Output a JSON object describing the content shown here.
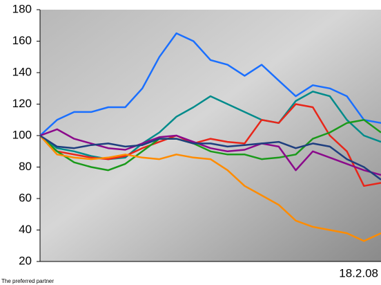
{
  "chart_data": {
    "type": "line",
    "date_label": "18.2.08",
    "footer": "The preferred partner",
    "ylim": [
      20,
      180
    ],
    "yticks": [
      20,
      40,
      60,
      80,
      100,
      120,
      140,
      160,
      180
    ],
    "series": [
      {
        "color": "#1a6fff",
        "values": [
          100,
          110,
          115,
          115,
          118,
          118,
          130,
          150,
          165,
          160,
          148,
          145,
          138,
          145,
          135,
          125,
          132,
          130,
          125,
          110,
          108
        ]
      },
      {
        "color": "#008b8b",
        "values": [
          100,
          92,
          90,
          87,
          85,
          86,
          95,
          102,
          112,
          118,
          125,
          120,
          115,
          110,
          108,
          122,
          128,
          125,
          110,
          100,
          96
        ]
      },
      {
        "color": "#e8261a",
        "values": [
          100,
          90,
          88,
          86,
          85,
          87,
          92,
          96,
          100,
          95,
          98,
          96,
          95,
          110,
          108,
          120,
          118,
          100,
          90,
          68,
          70
        ]
      },
      {
        "color": "#1a9a1a",
        "values": [
          100,
          90,
          83,
          80,
          78,
          82,
          90,
          98,
          98,
          95,
          90,
          88,
          88,
          85,
          86,
          88,
          98,
          102,
          108,
          110,
          102
        ]
      },
      {
        "color": "#8b0a8b",
        "values": [
          100,
          104,
          98,
          95,
          92,
          91,
          95,
          99,
          100,
          96,
          92,
          90,
          91,
          95,
          93,
          78,
          90,
          86,
          82,
          78,
          75
        ]
      },
      {
        "color": "#ff8c00",
        "values": [
          100,
          88,
          86,
          85,
          86,
          88,
          86,
          85,
          88,
          86,
          85,
          78,
          68,
          62,
          56,
          46,
          42,
          40,
          38,
          33,
          38
        ]
      },
      {
        "color": "#1f3f7f",
        "values": [
          100,
          93,
          92,
          94,
          95,
          93,
          94,
          98,
          98,
          95,
          95,
          93,
          94,
          95,
          96,
          92,
          95,
          93,
          85,
          80,
          72
        ]
      }
    ]
  }
}
